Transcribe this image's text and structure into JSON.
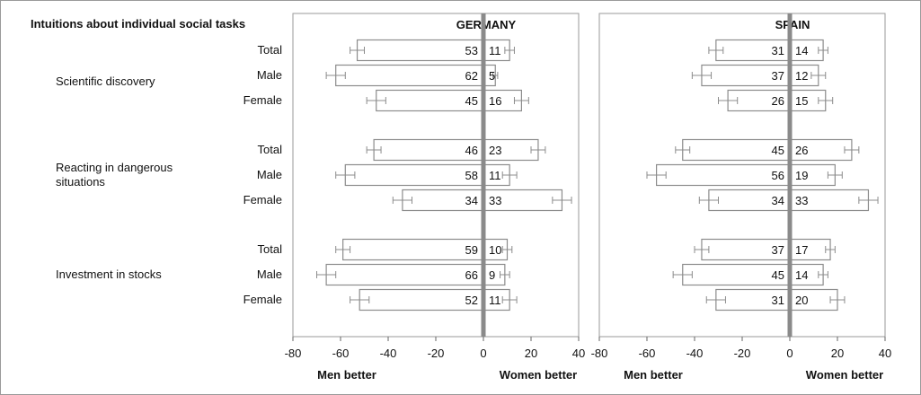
{
  "chart_data": {
    "type": "bar",
    "title": "Intuitions about individual social tasks",
    "panels": [
      {
        "name": "GERMANY"
      },
      {
        "name": "SPAIN"
      }
    ],
    "tasks": [
      {
        "label": "Scientific discovery",
        "groups": [
          "Total",
          "Male",
          "Female"
        ]
      },
      {
        "label": "Reacting in dangerous situations",
        "groups": [
          "Total",
          "Male",
          "Female"
        ]
      },
      {
        "label": "Investment in stocks",
        "groups": [
          "Total",
          "Male",
          "Female"
        ]
      }
    ],
    "series": [
      {
        "name": "GERMANY",
        "men": [
          53,
          62,
          45,
          46,
          58,
          34,
          59,
          66,
          52
        ],
        "women": [
          11,
          5,
          16,
          23,
          11,
          33,
          10,
          9,
          11
        ]
      },
      {
        "name": "SPAIN",
        "men": [
          31,
          37,
          26,
          45,
          56,
          34,
          37,
          45,
          31
        ],
        "women": [
          14,
          12,
          15,
          26,
          19,
          33,
          17,
          14,
          20
        ]
      }
    ],
    "error_bars": {
      "germany_men": [
        3,
        4,
        4,
        3,
        4,
        4,
        3,
        4,
        4
      ],
      "germany_women": [
        2,
        1,
        3,
        3,
        3,
        4,
        2,
        2,
        3
      ],
      "spain_men": [
        3,
        4,
        4,
        3,
        4,
        4,
        3,
        4,
        4
      ],
      "spain_women": [
        2,
        3,
        3,
        3,
        3,
        4,
        2,
        2,
        3
      ]
    },
    "xlim": [
      -80,
      40
    ],
    "xticks": [
      -80,
      -60,
      -40,
      -20,
      0,
      20,
      40
    ],
    "x_tick_labels": [
      "-80",
      "-60",
      "-40",
      "-20",
      "0",
      "20",
      "40"
    ],
    "xlabel_left": "Men better",
    "xlabel_right": "Women better",
    "grid": false
  },
  "colors": {
    "bar_fill": "#ffffff",
    "bar_stroke": "#8c8c8c",
    "center_line": "#8a8a8a",
    "text": "#111111",
    "frame": "#9a9a9a"
  }
}
